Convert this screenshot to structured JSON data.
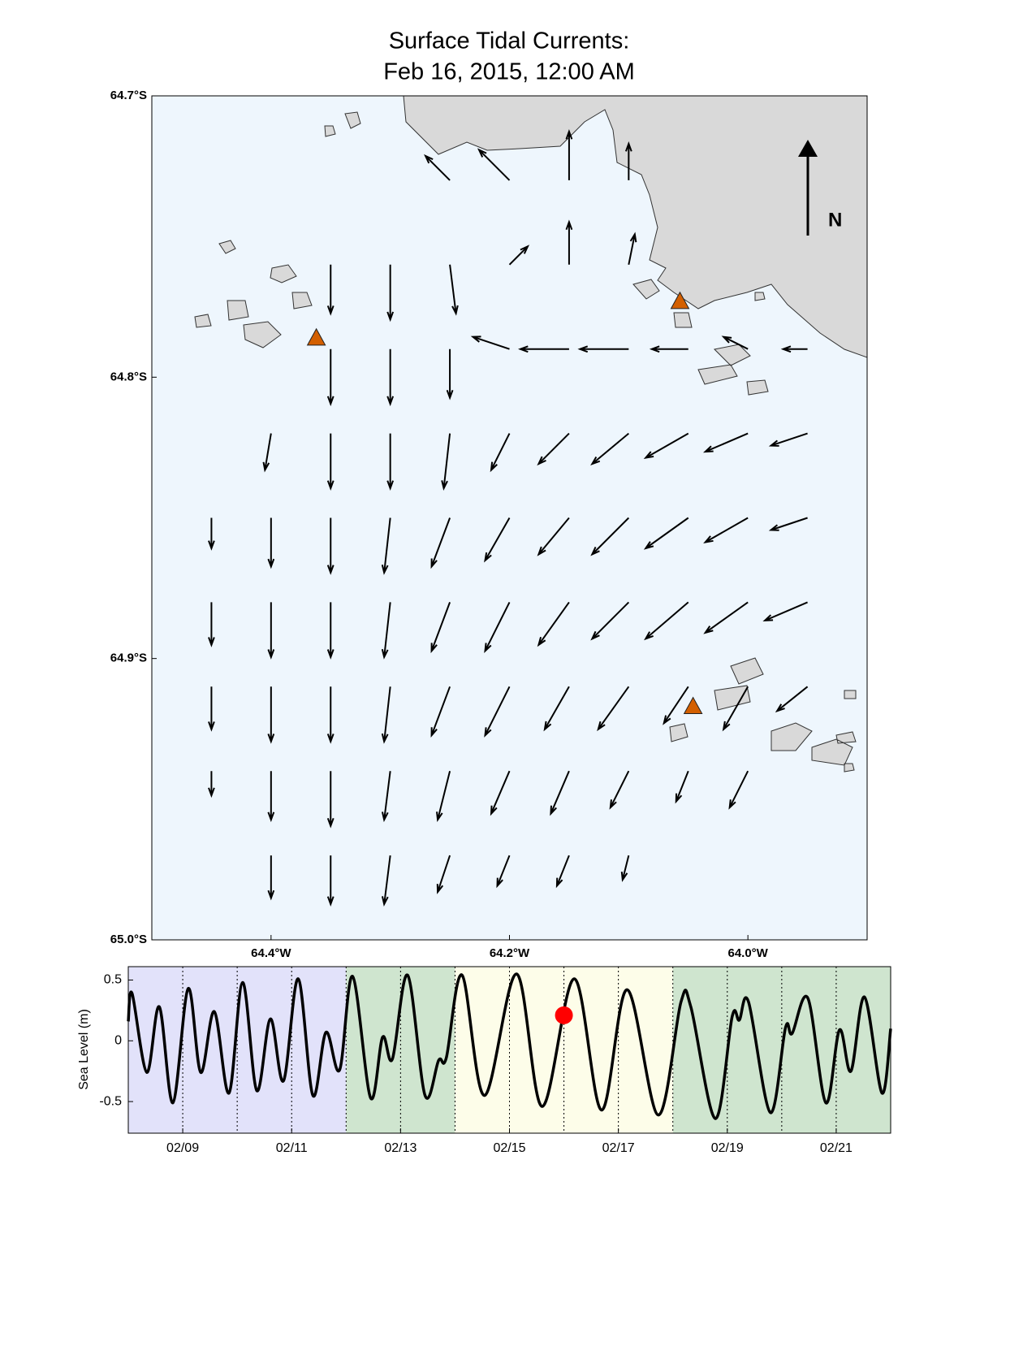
{
  "chart_data": [
    {
      "type": "quiver",
      "title": "Surface Tidal Currents:",
      "subtitle": "Feb 16, 2015, 12:00 AM",
      "north_label": "N",
      "xlim": [
        64.5,
        63.9
      ],
      "ylim": [
        64.7,
        65.0
      ],
      "xticks": [
        {
          "value": 64.4,
          "label": "64.4°W"
        },
        {
          "value": 64.2,
          "label": "64.2°W"
        },
        {
          "value": 64.0,
          "label": "64.0°W"
        }
      ],
      "yticks": [
        {
          "value": 64.7,
          "label": "64.7°S"
        },
        {
          "value": 64.8,
          "label": "64.8°S"
        },
        {
          "value": 64.9,
          "label": "64.9°S"
        },
        {
          "value": 65.0,
          "label": "65.0°S"
        }
      ],
      "color": "#000000",
      "quiver": {
        "lon": [
          64.45,
          64.4,
          64.35,
          64.3,
          64.25,
          64.2,
          64.15,
          64.1,
          64.05,
          64.0,
          63.95
        ],
        "lat": [
          64.73,
          64.76,
          64.79,
          64.82,
          64.85,
          64.88,
          64.91,
          64.94,
          64.97
        ],
        "u": [
          [
            null,
            null,
            null,
            null,
            -0.4,
            -0.5,
            0,
            0,
            null,
            null,
            null
          ],
          [
            null,
            null,
            0,
            0,
            0.1,
            0.3,
            0,
            0.1,
            null,
            null,
            null
          ],
          [
            null,
            null,
            0,
            0,
            0,
            -0.6,
            -0.8,
            -0.8,
            -0.6,
            -0.4,
            -0.4
          ],
          [
            null,
            -0.1,
            0,
            0,
            -0.1,
            -0.3,
            -0.5,
            -0.6,
            -0.7,
            -0.7,
            -0.6
          ],
          [
            0,
            0,
            0,
            -0.1,
            -0.3,
            -0.4,
            -0.5,
            -0.6,
            -0.7,
            -0.7,
            -0.6
          ],
          [
            0,
            0,
            0,
            -0.1,
            -0.3,
            -0.4,
            -0.5,
            -0.6,
            -0.7,
            -0.7,
            -0.7
          ],
          [
            0,
            0,
            0,
            -0.1,
            -0.3,
            -0.4,
            -0.4,
            -0.5,
            -0.4,
            -0.4,
            -0.5
          ],
          [
            0,
            0,
            0,
            -0.1,
            -0.2,
            -0.3,
            -0.3,
            -0.3,
            -0.2,
            -0.3,
            null
          ],
          [
            null,
            0,
            0,
            -0.1,
            -0.2,
            -0.2,
            -0.2,
            -0.1,
            null,
            null,
            null
          ]
        ],
        "v": [
          [
            null,
            null,
            null,
            null,
            0.4,
            0.5,
            0.8,
            0.6,
            null,
            null,
            null
          ],
          [
            null,
            null,
            -0.8,
            -0.9,
            -0.8,
            0.3,
            0.7,
            0.5,
            null,
            null,
            null
          ],
          [
            null,
            null,
            -0.9,
            -0.9,
            -0.8,
            0.2,
            0,
            0,
            0,
            0.2,
            0
          ],
          [
            null,
            -0.6,
            -0.9,
            -0.9,
            -0.9,
            -0.6,
            -0.5,
            -0.5,
            -0.4,
            -0.3,
            -0.2
          ],
          [
            -0.5,
            -0.8,
            -0.9,
            -0.9,
            -0.8,
            -0.7,
            -0.6,
            -0.6,
            -0.5,
            -0.4,
            -0.2
          ],
          [
            -0.7,
            -0.9,
            -0.9,
            -0.9,
            -0.8,
            -0.8,
            -0.7,
            -0.6,
            -0.6,
            -0.5,
            -0.3
          ],
          [
            -0.7,
            -0.9,
            -0.9,
            -0.9,
            -0.8,
            -0.8,
            -0.7,
            -0.7,
            -0.6,
            -0.7,
            -0.4
          ],
          [
            -0.4,
            -0.8,
            -0.9,
            -0.8,
            -0.8,
            -0.7,
            -0.7,
            -0.6,
            -0.5,
            -0.6,
            null
          ],
          [
            null,
            -0.7,
            -0.8,
            -0.8,
            -0.6,
            -0.5,
            -0.5,
            -0.4,
            null,
            null,
            null
          ]
        ]
      },
      "stations": {
        "lon": [
          64.362,
          64.057,
          64.046
        ],
        "lat": [
          64.786,
          64.773,
          64.917
        ],
        "color": "#d35f00"
      }
    },
    {
      "type": "line",
      "ylabel": "Sea Level (m)",
      "xlim": [
        8,
        22
      ],
      "ylim": [
        -0.76,
        0.61
      ],
      "xticks": [
        {
          "value": 9,
          "label": "02/09"
        },
        {
          "value": 11,
          "label": "02/11"
        },
        {
          "value": 13,
          "label": "02/13"
        },
        {
          "value": 15,
          "label": "02/15"
        },
        {
          "value": 17,
          "label": "02/17"
        },
        {
          "value": 19,
          "label": "02/19"
        },
        {
          "value": 21,
          "label": "02/21"
        }
      ],
      "day_lines": [
        9,
        10,
        11,
        12,
        13,
        14,
        15,
        16,
        17,
        18,
        19,
        20,
        21
      ],
      "yticks": [
        0.5,
        0,
        -0.5
      ],
      "periods": [
        {
          "start": 8,
          "end": 12,
          "color": "#e2e2fa"
        },
        {
          "start": 12,
          "end": 14,
          "color": "#cfe5cf"
        },
        {
          "start": 14,
          "end": 18,
          "color": "#fdfde9"
        },
        {
          "start": 18,
          "end": 22,
          "color": "#cfe5cf"
        }
      ],
      "color": "#000000",
      "x": [
        8.0,
        8.07,
        8.34,
        8.57,
        8.82,
        9.1,
        9.33,
        9.58,
        9.85,
        10.1,
        10.36,
        10.61,
        10.85,
        11.12,
        11.39,
        11.63,
        11.88,
        12.12,
        12.45,
        12.67,
        12.85,
        13.13,
        13.45,
        13.7,
        13.84,
        14.13,
        14.54,
        15.13,
        15.6,
        16.19,
        16.69,
        17.16,
        17.73,
        18.15,
        18.33,
        18.78,
        19.09,
        19.22,
        19.39,
        19.79,
        20.07,
        20.19,
        20.48,
        20.81,
        21.06,
        21.27,
        21.52,
        21.84,
        22.0
      ],
      "values": [
        0.16,
        0.39,
        -0.26,
        0.28,
        -0.51,
        0.43,
        -0.26,
        0.24,
        -0.43,
        0.48,
        -0.41,
        0.18,
        -0.33,
        0.51,
        -0.45,
        0.07,
        -0.24,
        0.53,
        -0.47,
        0.03,
        -0.15,
        0.54,
        -0.45,
        -0.16,
        -0.14,
        0.54,
        -0.45,
        0.55,
        -0.54,
        0.51,
        -0.57,
        0.42,
        -0.61,
        0.32,
        0.28,
        -0.64,
        0.2,
        0.17,
        0.32,
        -0.59,
        0.11,
        0.06,
        0.35,
        -0.51,
        0.09,
        -0.25,
        0.36,
        -0.43,
        0.1
      ],
      "marker": {
        "x": 16.0,
        "value": 0.21,
        "color": "#ff0000"
      }
    }
  ]
}
